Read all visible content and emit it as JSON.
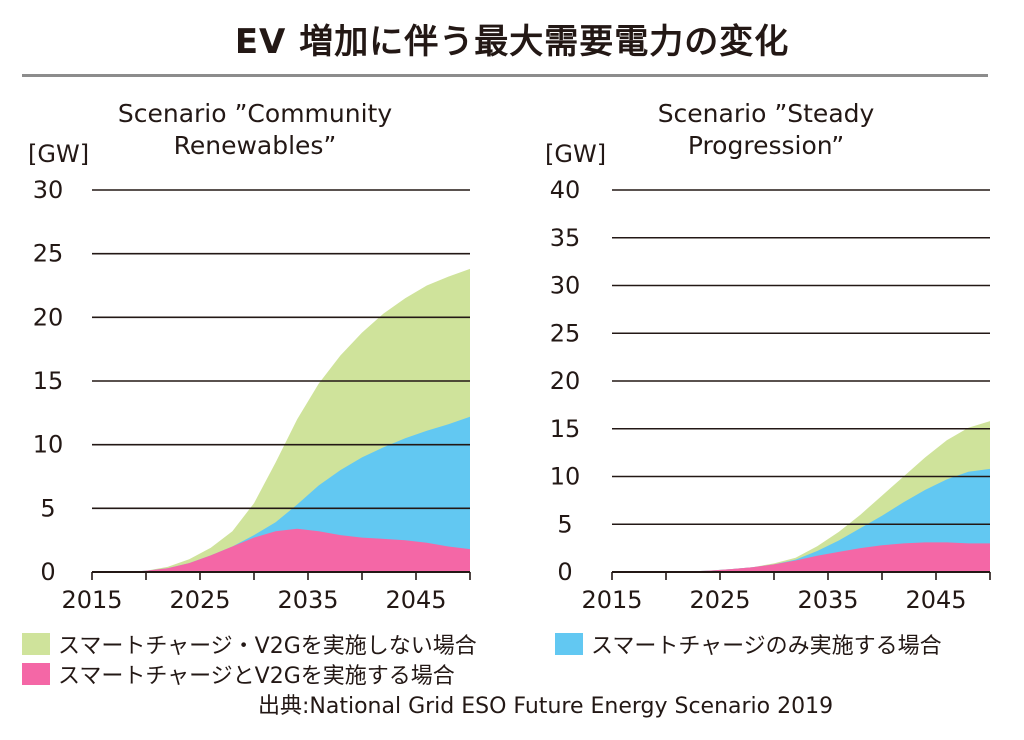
{
  "title": "EV 増加に伴う最大需要電力の変化",
  "legend": [
    {
      "label": "スマートチャージ・V2Gを実施しない場合",
      "color": "#cfe39b"
    },
    {
      "label": "スマートチャージのみ実施する場合",
      "color": "#62c8f2"
    },
    {
      "label": "スマートチャージとV2Gを実施する場合",
      "color": "#f467a6"
    }
  ],
  "source": "出典:National Grid ESO Future Energy Scenario 2019",
  "chart_data": [
    {
      "type": "area",
      "title": "Scenario ”Community Renewables”",
      "title_lines": [
        "Scenario ”Community",
        "Renewables”"
      ],
      "ylabel": "[GW]",
      "xlabel": "",
      "ylim": [
        0,
        30
      ],
      "yticks": [
        0,
        5,
        10,
        15,
        20,
        25,
        30
      ],
      "xlim": [
        2015,
        2050
      ],
      "xticks": [
        2015,
        2025,
        2035,
        2045
      ],
      "x": [
        2015,
        2018,
        2020,
        2022,
        2024,
        2026,
        2028,
        2030,
        2032,
        2034,
        2036,
        2038,
        2040,
        2042,
        2044,
        2046,
        2048,
        2050
      ],
      "series": [
        {
          "name": "スマートチャージとV2Gを実施する場合",
          "color": "#f467a6",
          "values": [
            0,
            0,
            0.1,
            0.3,
            0.7,
            1.3,
            2.0,
            2.7,
            3.2,
            3.4,
            3.2,
            2.9,
            2.7,
            2.6,
            2.5,
            2.3,
            2.0,
            1.8
          ]
        },
        {
          "name": "スマートチャージのみ実施する場合",
          "color": "#62c8f2",
          "values": [
            0,
            0,
            0.1,
            0.3,
            0.7,
            1.3,
            2.0,
            2.9,
            3.9,
            5.3,
            6.8,
            8.0,
            9.0,
            9.8,
            10.5,
            11.1,
            11.6,
            12.2
          ]
        },
        {
          "name": "スマートチャージ・V2Gを実施しない場合",
          "color": "#cfe39b",
          "values": [
            0,
            0,
            0.1,
            0.4,
            1.0,
            1.9,
            3.2,
            5.4,
            8.6,
            12.0,
            14.8,
            17.0,
            18.8,
            20.3,
            21.5,
            22.5,
            23.2,
            23.8
          ]
        }
      ]
    },
    {
      "type": "area",
      "title": "Scenario ”Steady Progression”",
      "title_lines": [
        "Scenario ”Steady",
        "Progression”"
      ],
      "ylabel": "[GW]",
      "xlabel": "",
      "ylim": [
        0,
        40
      ],
      "yticks": [
        0,
        5,
        10,
        15,
        20,
        25,
        30,
        35,
        40
      ],
      "xlim": [
        2015,
        2050
      ],
      "xticks": [
        2015,
        2025,
        2035,
        2045
      ],
      "x": [
        2015,
        2018,
        2020,
        2022,
        2024,
        2026,
        2028,
        2030,
        2032,
        2034,
        2036,
        2038,
        2040,
        2042,
        2044,
        2046,
        2048,
        2050
      ],
      "series": [
        {
          "name": "スマートチャージとV2Gを実施する場合",
          "color": "#f467a6",
          "values": [
            0,
            0,
            0,
            0.05,
            0.15,
            0.3,
            0.5,
            0.8,
            1.2,
            1.7,
            2.1,
            2.5,
            2.8,
            3.0,
            3.1,
            3.1,
            3.0,
            3.0
          ]
        },
        {
          "name": "スマートチャージのみ実施する場合",
          "color": "#62c8f2",
          "values": [
            0,
            0,
            0,
            0.05,
            0.15,
            0.3,
            0.5,
            0.8,
            1.3,
            2.2,
            3.3,
            4.6,
            5.9,
            7.3,
            8.6,
            9.7,
            10.5,
            10.8
          ]
        },
        {
          "name": "スマートチャージ・V2Gを実施しない場合",
          "color": "#cfe39b",
          "values": [
            0,
            0,
            0,
            0.05,
            0.15,
            0.3,
            0.5,
            0.9,
            1.5,
            2.7,
            4.2,
            6.0,
            8.0,
            10.0,
            12.0,
            13.8,
            15.1,
            15.8
          ]
        }
      ]
    }
  ]
}
